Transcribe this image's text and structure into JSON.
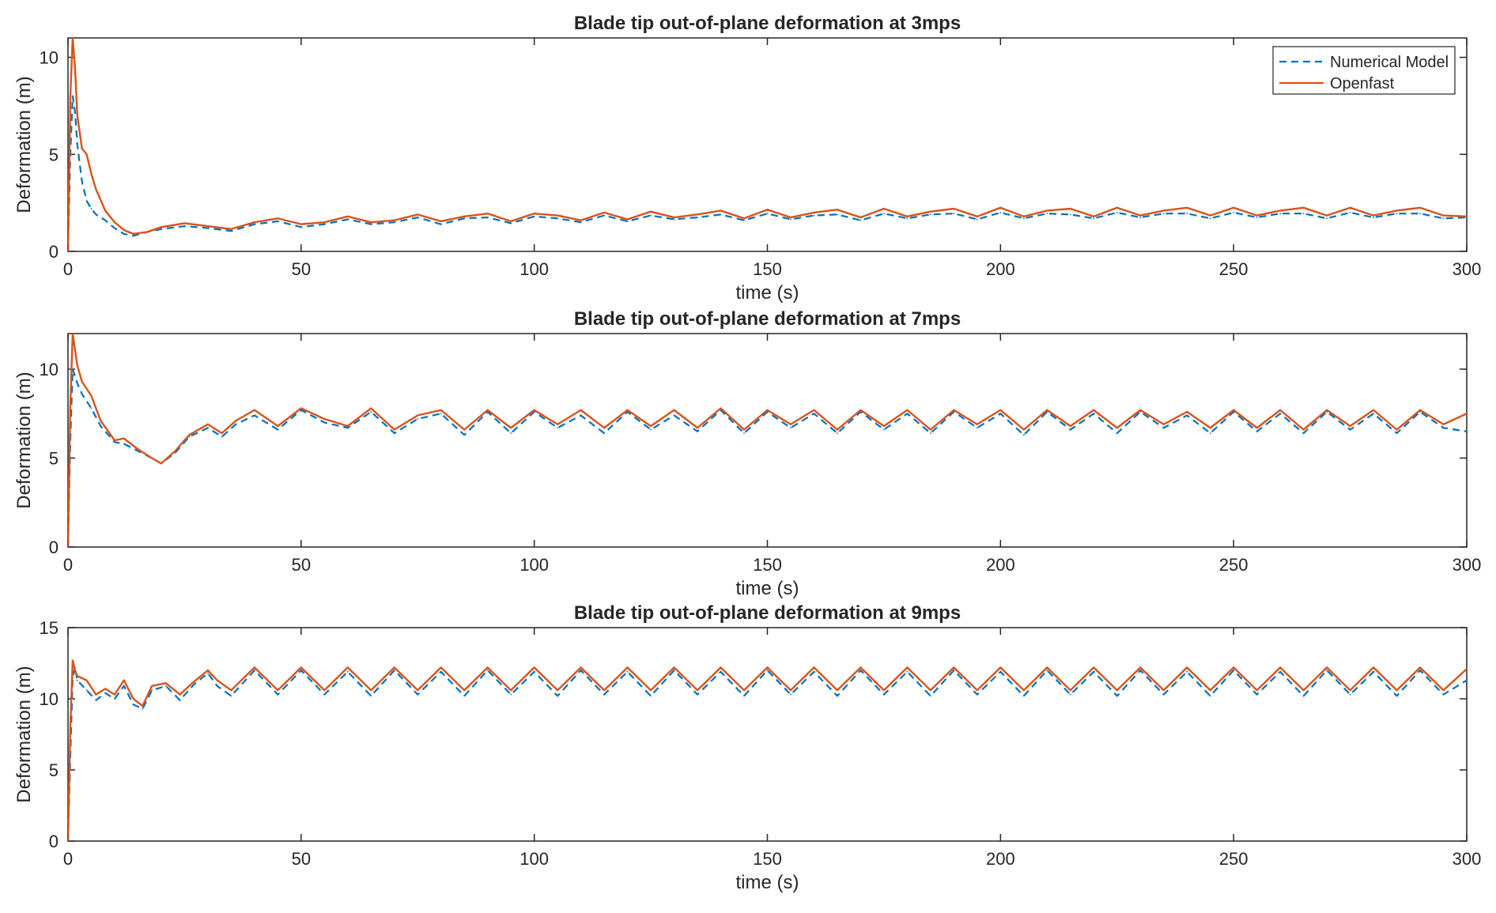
{
  "figure": {
    "legend": {
      "placement": "top-right",
      "entries": [
        "Numerical Model",
        "Openfast"
      ]
    }
  },
  "colors": {
    "numerical": "#0072BD",
    "openfast": "#D95319",
    "axis": "#262626",
    "background": "#ffffff"
  },
  "chart_data": [
    {
      "type": "line",
      "title": "Blade tip out-of-plane deformation at 3mps",
      "xlabel": "time (s)",
      "ylabel": "Deformation (m)",
      "xlim": [
        0,
        300
      ],
      "ylim": [
        0,
        11
      ],
      "xticks": [
        0,
        50,
        100,
        150,
        200,
        250,
        300
      ],
      "yticks": [
        0,
        5,
        10
      ],
      "grid": false,
      "legend": "top-right",
      "series": [
        {
          "name": "Numerical Model",
          "style": "dashed",
          "x": [
            0,
            0.5,
            1,
            1.5,
            2,
            3,
            4,
            5,
            6,
            8,
            10,
            12,
            14,
            17,
            20,
            25,
            30,
            35,
            40,
            45,
            50,
            55,
            60,
            65,
            70,
            75,
            80,
            85,
            90,
            95,
            100,
            105,
            110,
            115,
            120,
            125,
            130,
            135,
            140,
            145,
            150,
            155,
            160,
            165,
            170,
            175,
            180,
            185,
            190,
            195,
            200,
            205,
            210,
            215,
            220,
            225,
            230,
            235,
            240,
            245,
            250,
            255,
            260,
            265,
            270,
            275,
            280,
            285,
            290,
            295,
            300
          ],
          "y": [
            0,
            5,
            8,
            7.2,
            5.5,
            3.6,
            2.6,
            2.2,
            1.9,
            1.6,
            1.2,
            0.9,
            0.8,
            1.0,
            1.15,
            1.3,
            1.2,
            1.05,
            1.4,
            1.55,
            1.25,
            1.4,
            1.65,
            1.4,
            1.5,
            1.75,
            1.4,
            1.7,
            1.75,
            1.45,
            1.8,
            1.7,
            1.5,
            1.85,
            1.55,
            1.85,
            1.65,
            1.75,
            1.9,
            1.6,
            1.95,
            1.65,
            1.85,
            1.9,
            1.6,
            1.95,
            1.7,
            1.9,
            1.95,
            1.65,
            2.0,
            1.7,
            1.95,
            1.9,
            1.7,
            2.0,
            1.75,
            1.95,
            1.95,
            1.7,
            2.0,
            1.75,
            1.95,
            1.95,
            1.7,
            2.0,
            1.75,
            1.95,
            1.95,
            1.7,
            1.75
          ]
        },
        {
          "name": "Openfast",
          "style": "solid",
          "x": [
            0,
            0.5,
            1,
            1.5,
            2,
            3,
            4,
            5,
            6,
            8,
            10,
            12,
            14,
            17,
            20,
            25,
            30,
            35,
            40,
            45,
            50,
            55,
            60,
            65,
            70,
            75,
            80,
            85,
            90,
            95,
            100,
            105,
            110,
            115,
            120,
            125,
            130,
            135,
            140,
            145,
            150,
            155,
            160,
            165,
            170,
            175,
            180,
            185,
            190,
            195,
            200,
            205,
            210,
            215,
            220,
            225,
            230,
            235,
            240,
            245,
            250,
            255,
            260,
            265,
            270,
            275,
            280,
            285,
            290,
            295,
            300
          ],
          "y": [
            0,
            8,
            11,
            9.5,
            7.0,
            5.3,
            5.0,
            4.0,
            3.2,
            2.1,
            1.5,
            1.1,
            0.9,
            1.0,
            1.25,
            1.45,
            1.3,
            1.15,
            1.5,
            1.7,
            1.4,
            1.5,
            1.8,
            1.5,
            1.6,
            1.9,
            1.55,
            1.8,
            1.95,
            1.55,
            1.95,
            1.85,
            1.6,
            2.0,
            1.65,
            2.05,
            1.75,
            1.9,
            2.1,
            1.7,
            2.15,
            1.75,
            2.0,
            2.15,
            1.75,
            2.2,
            1.8,
            2.05,
            2.2,
            1.8,
            2.25,
            1.8,
            2.1,
            2.2,
            1.8,
            2.25,
            1.85,
            2.1,
            2.25,
            1.85,
            2.25,
            1.85,
            2.1,
            2.25,
            1.85,
            2.25,
            1.85,
            2.1,
            2.25,
            1.85,
            1.8
          ]
        }
      ]
    },
    {
      "type": "line",
      "title": "Blade tip out-of-plane deformation at 7mps",
      "xlabel": "time (s)",
      "ylabel": "Deformation (m)",
      "xlim": [
        0,
        300
      ],
      "ylim": [
        0,
        12
      ],
      "xticks": [
        0,
        50,
        100,
        150,
        200,
        250,
        300
      ],
      "yticks": [
        0,
        5,
        10
      ],
      "grid": false,
      "legend": "",
      "series": [
        {
          "name": "Numerical Model",
          "style": "dashed",
          "x": [
            0,
            0.5,
            1,
            2,
            3,
            5,
            7,
            10,
            12,
            15,
            18,
            20,
            23,
            26,
            30,
            33,
            36,
            40,
            45,
            50,
            55,
            60,
            65,
            70,
            75,
            80,
            85,
            90,
            95,
            100,
            105,
            110,
            115,
            120,
            125,
            130,
            135,
            140,
            145,
            150,
            155,
            160,
            165,
            170,
            175,
            180,
            185,
            190,
            195,
            200,
            205,
            210,
            215,
            220,
            225,
            230,
            235,
            240,
            245,
            250,
            255,
            260,
            265,
            270,
            275,
            280,
            285,
            290,
            295,
            300
          ],
          "y": [
            0,
            6,
            10,
            9.2,
            8.6,
            7.8,
            6.8,
            5.9,
            5.8,
            5.4,
            5.0,
            4.7,
            5.3,
            6.2,
            6.7,
            6.2,
            6.9,
            7.4,
            6.6,
            7.7,
            7.0,
            6.7,
            7.6,
            6.4,
            7.2,
            7.5,
            6.3,
            7.6,
            6.4,
            7.6,
            6.7,
            7.4,
            6.4,
            7.6,
            6.6,
            7.4,
            6.5,
            7.7,
            6.4,
            7.6,
            6.7,
            7.5,
            6.4,
            7.6,
            6.6,
            7.5,
            6.4,
            7.6,
            6.7,
            7.5,
            6.3,
            7.6,
            6.6,
            7.5,
            6.4,
            7.6,
            6.7,
            7.4,
            6.4,
            7.6,
            6.5,
            7.5,
            6.4,
            7.6,
            6.6,
            7.5,
            6.4,
            7.6,
            6.7,
            6.5
          ]
        },
        {
          "name": "Openfast",
          "style": "solid",
          "x": [
            0,
            0.5,
            1,
            2,
            3,
            5,
            7,
            10,
            12,
            15,
            18,
            20,
            23,
            26,
            30,
            33,
            36,
            40,
            45,
            50,
            55,
            60,
            65,
            70,
            75,
            80,
            85,
            90,
            95,
            100,
            105,
            110,
            115,
            120,
            125,
            130,
            135,
            140,
            145,
            150,
            155,
            160,
            165,
            170,
            175,
            180,
            185,
            190,
            195,
            200,
            205,
            210,
            215,
            220,
            225,
            230,
            235,
            240,
            245,
            250,
            255,
            260,
            265,
            270,
            275,
            280,
            285,
            290,
            295,
            300
          ],
          "y": [
            0,
            8,
            12,
            10.2,
            9.3,
            8.5,
            7.1,
            6.0,
            6.1,
            5.5,
            5.0,
            4.7,
            5.4,
            6.3,
            6.9,
            6.4,
            7.1,
            7.7,
            6.8,
            7.8,
            7.2,
            6.8,
            7.8,
            6.6,
            7.4,
            7.7,
            6.6,
            7.7,
            6.7,
            7.7,
            6.9,
            7.7,
            6.7,
            7.7,
            6.8,
            7.7,
            6.7,
            7.8,
            6.6,
            7.7,
            6.9,
            7.7,
            6.6,
            7.7,
            6.8,
            7.7,
            6.6,
            7.7,
            6.9,
            7.7,
            6.6,
            7.7,
            6.8,
            7.7,
            6.7,
            7.7,
            6.9,
            7.6,
            6.7,
            7.7,
            6.7,
            7.7,
            6.6,
            7.7,
            6.8,
            7.7,
            6.6,
            7.7,
            6.9,
            7.5
          ]
        }
      ]
    },
    {
      "type": "line",
      "title": "Blade tip out-of-plane deformation at 9mps",
      "xlabel": "time (s)",
      "ylabel": "Deformation (m)",
      "xlim": [
        0,
        300
      ],
      "ylim": [
        0,
        15
      ],
      "xticks": [
        0,
        50,
        100,
        150,
        200,
        250,
        300
      ],
      "yticks": [
        0,
        5,
        10,
        15
      ],
      "grid": false,
      "legend": "",
      "series": [
        {
          "name": "Numerical Model",
          "style": "dashed",
          "x": [
            0,
            0.5,
            1,
            1.5,
            2,
            4,
            6,
            8,
            10,
            12,
            14,
            16,
            18,
            21,
            24,
            27,
            30,
            32,
            35,
            40,
            45,
            50,
            55,
            60,
            65,
            70,
            75,
            80,
            85,
            90,
            95,
            100,
            105,
            110,
            115,
            120,
            125,
            130,
            135,
            140,
            145,
            150,
            155,
            160,
            165,
            170,
            175,
            180,
            185,
            190,
            195,
            200,
            205,
            210,
            215,
            220,
            225,
            230,
            235,
            240,
            245,
            250,
            255,
            260,
            265,
            270,
            275,
            280,
            285,
            290,
            295,
            300
          ],
          "y": [
            0,
            6,
            11.5,
            12.2,
            11.3,
            10.6,
            9.9,
            10.4,
            10.0,
            10.9,
            9.6,
            9.3,
            10.6,
            10.9,
            9.9,
            11.0,
            11.8,
            10.9,
            10.2,
            12.0,
            10.3,
            12.0,
            10.3,
            11.9,
            10.2,
            12.0,
            10.3,
            11.9,
            10.2,
            12.0,
            10.3,
            11.9,
            10.2,
            12.0,
            10.3,
            11.9,
            10.2,
            12.0,
            10.3,
            11.9,
            10.2,
            12.0,
            10.3,
            11.9,
            10.2,
            12.0,
            10.3,
            11.9,
            10.2,
            12.0,
            10.3,
            11.9,
            10.2,
            12.0,
            10.3,
            11.9,
            10.2,
            12.0,
            10.3,
            11.9,
            10.2,
            12.0,
            10.3,
            11.9,
            10.2,
            12.0,
            10.3,
            11.9,
            10.2,
            12.0,
            10.3,
            11.3
          ]
        },
        {
          "name": "Openfast",
          "style": "solid",
          "x": [
            0,
            0.5,
            1,
            1.5,
            2,
            4,
            6,
            8,
            10,
            12,
            14,
            16,
            18,
            21,
            24,
            27,
            30,
            32,
            35,
            40,
            45,
            50,
            55,
            60,
            65,
            70,
            75,
            80,
            85,
            90,
            95,
            100,
            105,
            110,
            115,
            120,
            125,
            130,
            135,
            140,
            145,
            150,
            155,
            160,
            165,
            170,
            175,
            180,
            185,
            190,
            195,
            200,
            205,
            210,
            215,
            220,
            225,
            230,
            235,
            240,
            245,
            250,
            255,
            260,
            265,
            270,
            275,
            280,
            285,
            290,
            295,
            300
          ],
          "y": [
            0,
            8,
            12.7,
            12.0,
            11.6,
            11.3,
            10.3,
            10.7,
            10.3,
            11.3,
            10.0,
            9.5,
            10.9,
            11.1,
            10.3,
            11.2,
            12.0,
            11.3,
            10.6,
            12.2,
            10.6,
            12.2,
            10.6,
            12.2,
            10.6,
            12.2,
            10.6,
            12.2,
            10.6,
            12.2,
            10.6,
            12.2,
            10.6,
            12.2,
            10.6,
            12.2,
            10.6,
            12.2,
            10.6,
            12.2,
            10.6,
            12.2,
            10.6,
            12.2,
            10.6,
            12.2,
            10.6,
            12.2,
            10.6,
            12.2,
            10.6,
            12.2,
            10.6,
            12.2,
            10.6,
            12.2,
            10.6,
            12.2,
            10.6,
            12.2,
            10.6,
            12.2,
            10.6,
            12.2,
            10.6,
            12.2,
            10.6,
            12.2,
            10.6,
            12.2,
            10.6,
            12.1
          ]
        }
      ]
    }
  ]
}
